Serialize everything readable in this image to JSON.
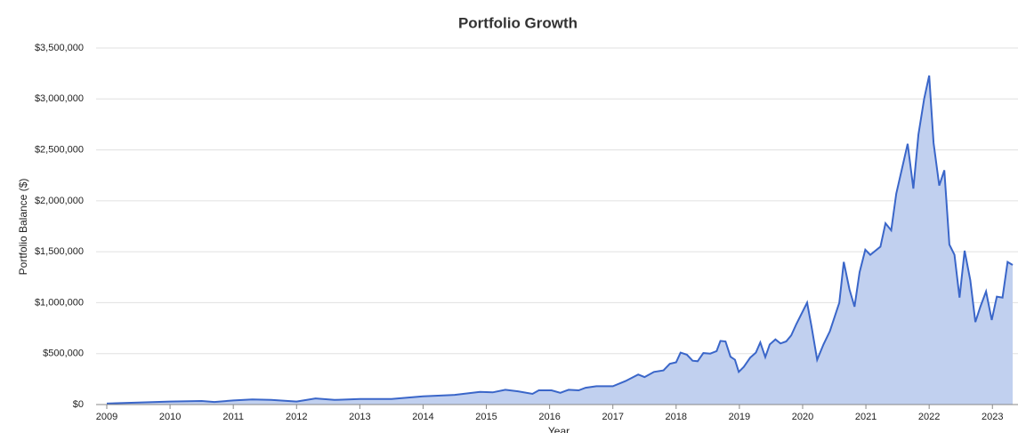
{
  "chart_data": {
    "type": "area",
    "title": "Portfolio Growth",
    "y_label": "Portfolio Balance ($)",
    "x_label": "Year",
    "color": "#3a66c9",
    "fill_color": "#c1d0ef",
    "grid": true,
    "xlim": [
      2009,
      2023.32
    ],
    "ylim": [
      0,
      3500000
    ],
    "xticks": [
      2009,
      2010,
      2011,
      2012,
      2013,
      2014,
      2015,
      2016,
      2017,
      2018,
      2019,
      2020,
      2021,
      2022,
      2023
    ],
    "yticks": [
      {
        "value": 0,
        "label": "$0"
      },
      {
        "value": 500000,
        "label": "$500,000"
      },
      {
        "value": 1000000,
        "label": "$1,000,000"
      },
      {
        "value": 1500000,
        "label": "$1,500,000"
      },
      {
        "value": 2000000,
        "label": "$2,000,000"
      },
      {
        "value": 2500000,
        "label": "$2,500,000"
      },
      {
        "value": 3000000,
        "label": "$3,000,000"
      },
      {
        "value": 3500000,
        "label": "$3,500,000"
      }
    ],
    "x": [
      2009,
      2009.5,
      2010,
      2010.5,
      2010.7,
      2011,
      2011.3,
      2011.6,
      2012,
      2012.3,
      2012.6,
      2013,
      2013.5,
      2014,
      2014.5,
      2014.9,
      2015.1,
      2015.3,
      2015.5,
      2015.73,
      2015.83,
      2016.03,
      2016.17,
      2016.3,
      2016.46,
      2016.57,
      2016.74,
      2017,
      2017.2,
      2017.4,
      2017.5,
      2017.65,
      2017.8,
      2017.9,
      2018,
      2018.07,
      2018.17,
      2018.26,
      2018.34,
      2018.43,
      2018.54,
      2018.64,
      2018.7,
      2018.78,
      2018.86,
      2018.93,
      2018.99,
      2019.07,
      2019.17,
      2019.26,
      2019.33,
      2019.41,
      2019.48,
      2019.57,
      2019.65,
      2019.74,
      2019.82,
      2019.9,
      2020.07,
      2020.14,
      2020.23,
      2020.33,
      2020.43,
      2020.58,
      2020.65,
      2020.74,
      2020.82,
      2020.9,
      2020.99,
      2021.07,
      2021.23,
      2021.31,
      2021.4,
      2021.48,
      2021.66,
      2021.75,
      2021.83,
      2021.92,
      2022,
      2022.07,
      2022.16,
      2022.24,
      2022.32,
      2022.4,
      2022.48,
      2022.56,
      2022.65,
      2022.73,
      2022.81,
      2022.9,
      2022.99,
      2023.07,
      2023.16,
      2023.24,
      2023.32
    ],
    "values": [
      10000,
      20000,
      30000,
      35000,
      25000,
      40000,
      50000,
      45000,
      30000,
      60000,
      45000,
      55000,
      55000,
      80000,
      95000,
      125000,
      120000,
      145000,
      130000,
      105000,
      140000,
      140000,
      115000,
      145000,
      140000,
      165000,
      180000,
      180000,
      230000,
      295000,
      270000,
      320000,
      335000,
      400000,
      415000,
      510000,
      490000,
      430000,
      425000,
      505000,
      500000,
      525000,
      625000,
      620000,
      470000,
      440000,
      320000,
      370000,
      460000,
      510000,
      610000,
      465000,
      590000,
      640000,
      600000,
      620000,
      680000,
      790000,
      1000000,
      770000,
      440000,
      590000,
      720000,
      1000000,
      1400000,
      1130000,
      960000,
      1300000,
      1520000,
      1470000,
      1550000,
      1780000,
      1710000,
      2070000,
      2560000,
      2120000,
      2650000,
      3000000,
      3230000,
      2570000,
      2150000,
      2300000,
      1570000,
      1470000,
      1050000,
      1510000,
      1220000,
      810000,
      960000,
      1110000,
      830000,
      1060000,
      1050000,
      1400000,
      1370000
    ]
  }
}
